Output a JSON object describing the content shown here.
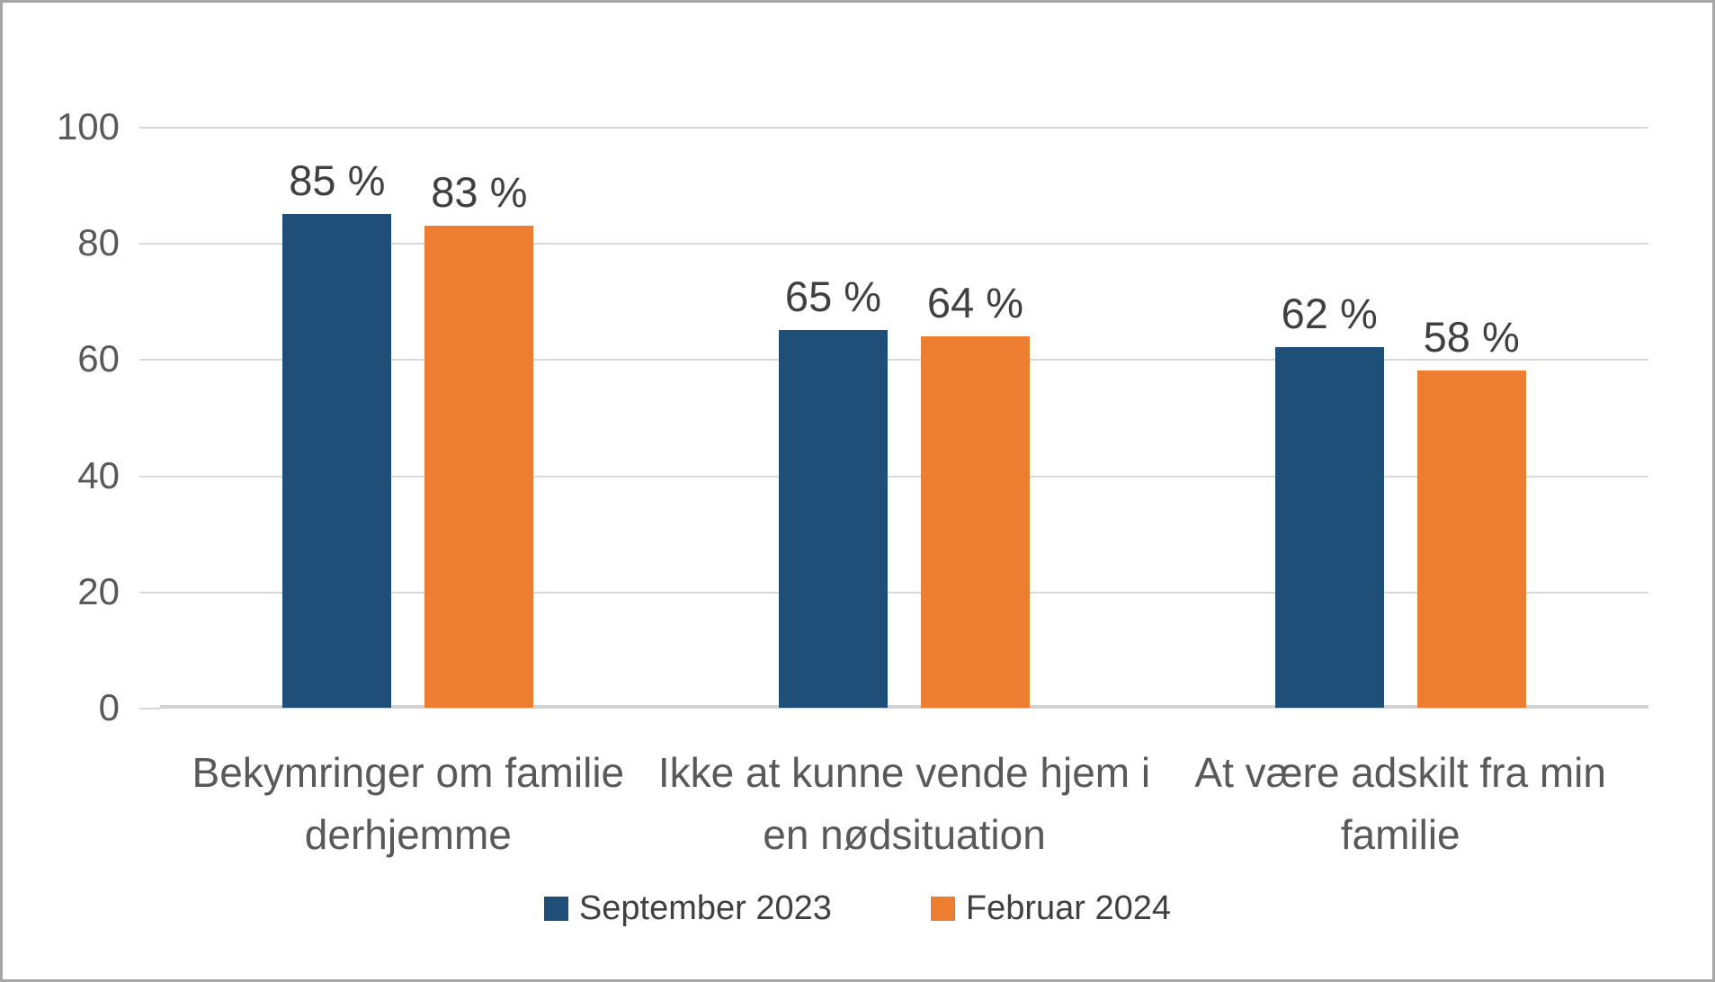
{
  "chart_data": {
    "type": "bar",
    "title": "",
    "xlabel": "",
    "ylabel": "",
    "categories": [
      "Bekymringer om familie derhjemme",
      "Ikke at kunne vende hjem i en nødsituation",
      "At være adskilt fra min familie"
    ],
    "series": [
      {
        "name": "September 2023",
        "color": "#1F4E79",
        "values": [
          85,
          65,
          62
        ],
        "labels": [
          "85 %",
          "65 %",
          "62 %"
        ]
      },
      {
        "name": "Februar 2024",
        "color": "#ED7D31",
        "values": [
          83,
          64,
          58
        ],
        "labels": [
          "83 %",
          "64 %",
          "58 %"
        ]
      }
    ],
    "ylim": [
      0,
      100
    ],
    "yticks": [
      100,
      80,
      60,
      40,
      20,
      0
    ],
    "ytick_labels": [
      "100",
      "80",
      "60",
      "40",
      "20",
      "0"
    ],
    "grid": true,
    "gridline_color": "#D9D9D9",
    "legend_position": "bottom"
  },
  "xaxis": {
    "labels": [
      "Bekymringer om familie\nderhjemme",
      "Ikke at kunne vende hjem i\nen nødsituation",
      "At være adskilt fra min\nfamilie"
    ]
  },
  "legend": {
    "items": [
      {
        "label": "September 2023",
        "color": "#1F4E79"
      },
      {
        "label": "Februar 2024",
        "color": "#ED7D31"
      }
    ]
  },
  "colors": {
    "text_dark": "#404040",
    "text_axis": "#595959",
    "border": "#A6A6A6",
    "background": "#FFFFFF"
  }
}
